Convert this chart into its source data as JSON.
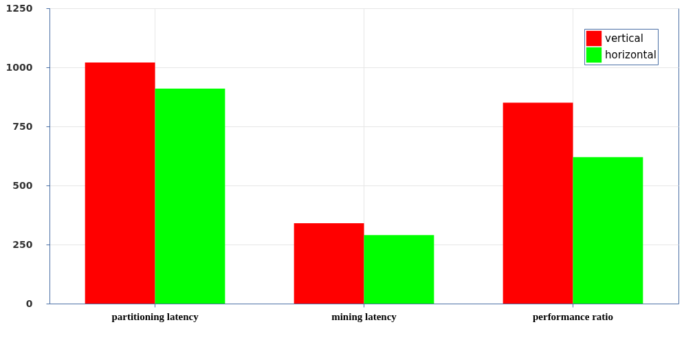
{
  "chart_data": {
    "type": "bar",
    "categories": [
      "partitioning latency",
      "mining latency",
      "performance ratio"
    ],
    "series": [
      {
        "name": "vertical",
        "color": "#ff0000",
        "values": [
          1020,
          340,
          850
        ]
      },
      {
        "name": "horizontal",
        "color": "#00ff00",
        "values": [
          910,
          290,
          620
        ]
      }
    ],
    "ylim": [
      0,
      1250
    ],
    "yticks": [
      0,
      250,
      500,
      750,
      1000,
      1250
    ],
    "grid": true,
    "legend": "top right"
  }
}
